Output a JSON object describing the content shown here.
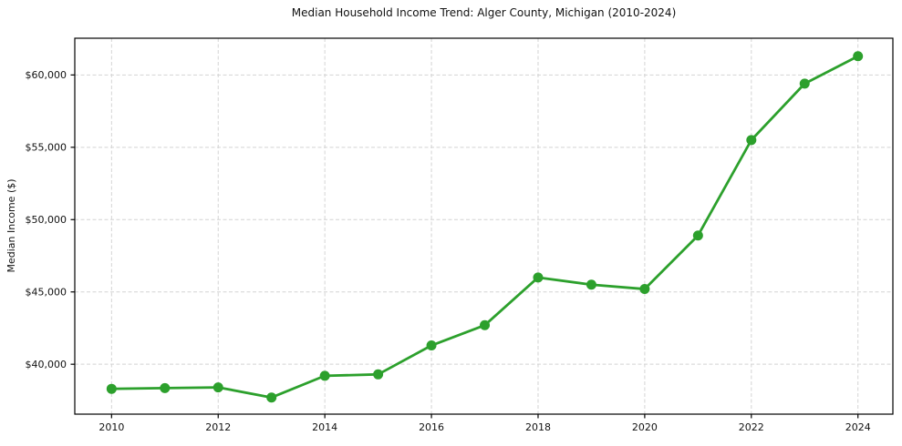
{
  "chart_data": {
    "type": "line",
    "title": "Median Household Income Trend: Alger County, Michigan (2010-2024)",
    "ylabel": "Median Income ($)",
    "xlabel": "",
    "x": [
      2010,
      2011,
      2012,
      2013,
      2014,
      2015,
      2016,
      2017,
      2018,
      2019,
      2020,
      2021,
      2022,
      2023,
      2024
    ],
    "values": [
      38300,
      38350,
      38400,
      37700,
      39200,
      39300,
      41300,
      42700,
      46000,
      45500,
      45200,
      48900,
      55500,
      59400,
      61300
    ],
    "xticks": [
      {
        "value": 2010,
        "label": "2010"
      },
      {
        "value": 2012,
        "label": "2012"
      },
      {
        "value": 2014,
        "label": "2014"
      },
      {
        "value": 2016,
        "label": "2016"
      },
      {
        "value": 2018,
        "label": "2018"
      },
      {
        "value": 2020,
        "label": "2020"
      },
      {
        "value": 2022,
        "label": "2022"
      },
      {
        "value": 2024,
        "label": "2024"
      }
    ],
    "yticks": [
      {
        "value": 40000,
        "label": "$40,000"
      },
      {
        "value": 45000,
        "label": "$45,000"
      },
      {
        "value": 50000,
        "label": "$50,000"
      },
      {
        "value": 55000,
        "label": "$55,000"
      },
      {
        "value": 60000,
        "label": "$60,000"
      }
    ],
    "xlim": [
      2009.31,
      2024.655
    ],
    "ylim": [
      36550,
      62540
    ],
    "grid": true,
    "grid_style": "dashed",
    "legend_position": "none",
    "line_color": "#2ca02c",
    "marker_color": "#2ca02c",
    "grid_color": "#d4d4d4",
    "marker_radius": 5.5
  }
}
